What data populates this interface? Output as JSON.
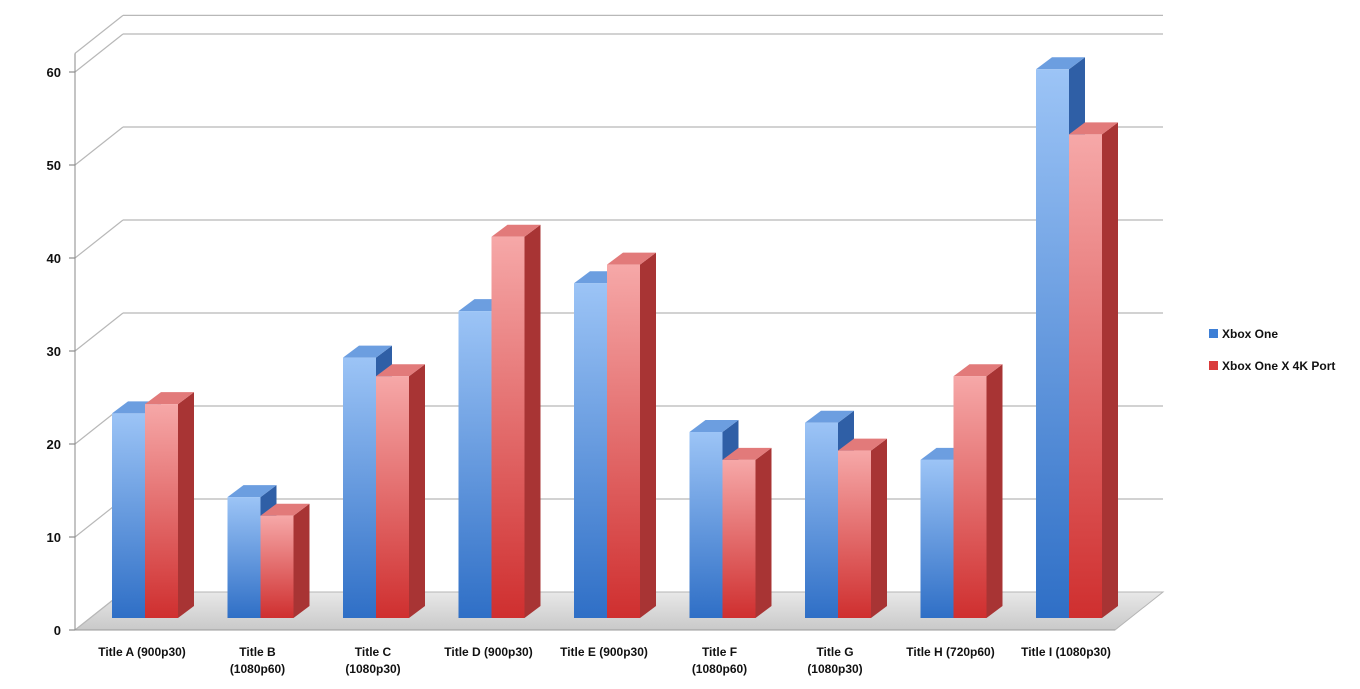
{
  "chart_data": {
    "type": "bar",
    "style": "3d-clustered-column",
    "categories": [
      [
        "Title A (900p30)"
      ],
      [
        "Title B",
        "(1080p60)"
      ],
      [
        "Title C",
        "(1080p30)"
      ],
      [
        "Title D (900p30)"
      ],
      [
        "Title E (900p30)"
      ],
      [
        "Title F",
        "(1080p60)"
      ],
      [
        "Title G",
        "(1080p30)"
      ],
      [
        "Title H (720p60)"
      ],
      [
        "Title I (1080p30)"
      ]
    ],
    "series": [
      {
        "name": "Xbox One",
        "values": [
          22,
          13,
          28,
          33,
          36,
          20,
          21,
          17,
          59
        ],
        "color": "#4f8fdb"
      },
      {
        "name": "Xbox One X 4K Port",
        "values": [
          23,
          11,
          26,
          41,
          38,
          17,
          18,
          26,
          52
        ],
        "color": "#e04a4a"
      }
    ],
    "yticks": [
      "0",
      "10",
      "20",
      "30",
      "40",
      "50",
      "60"
    ],
    "ylim": [
      0,
      62
    ],
    "grid": true,
    "legend": "right"
  }
}
